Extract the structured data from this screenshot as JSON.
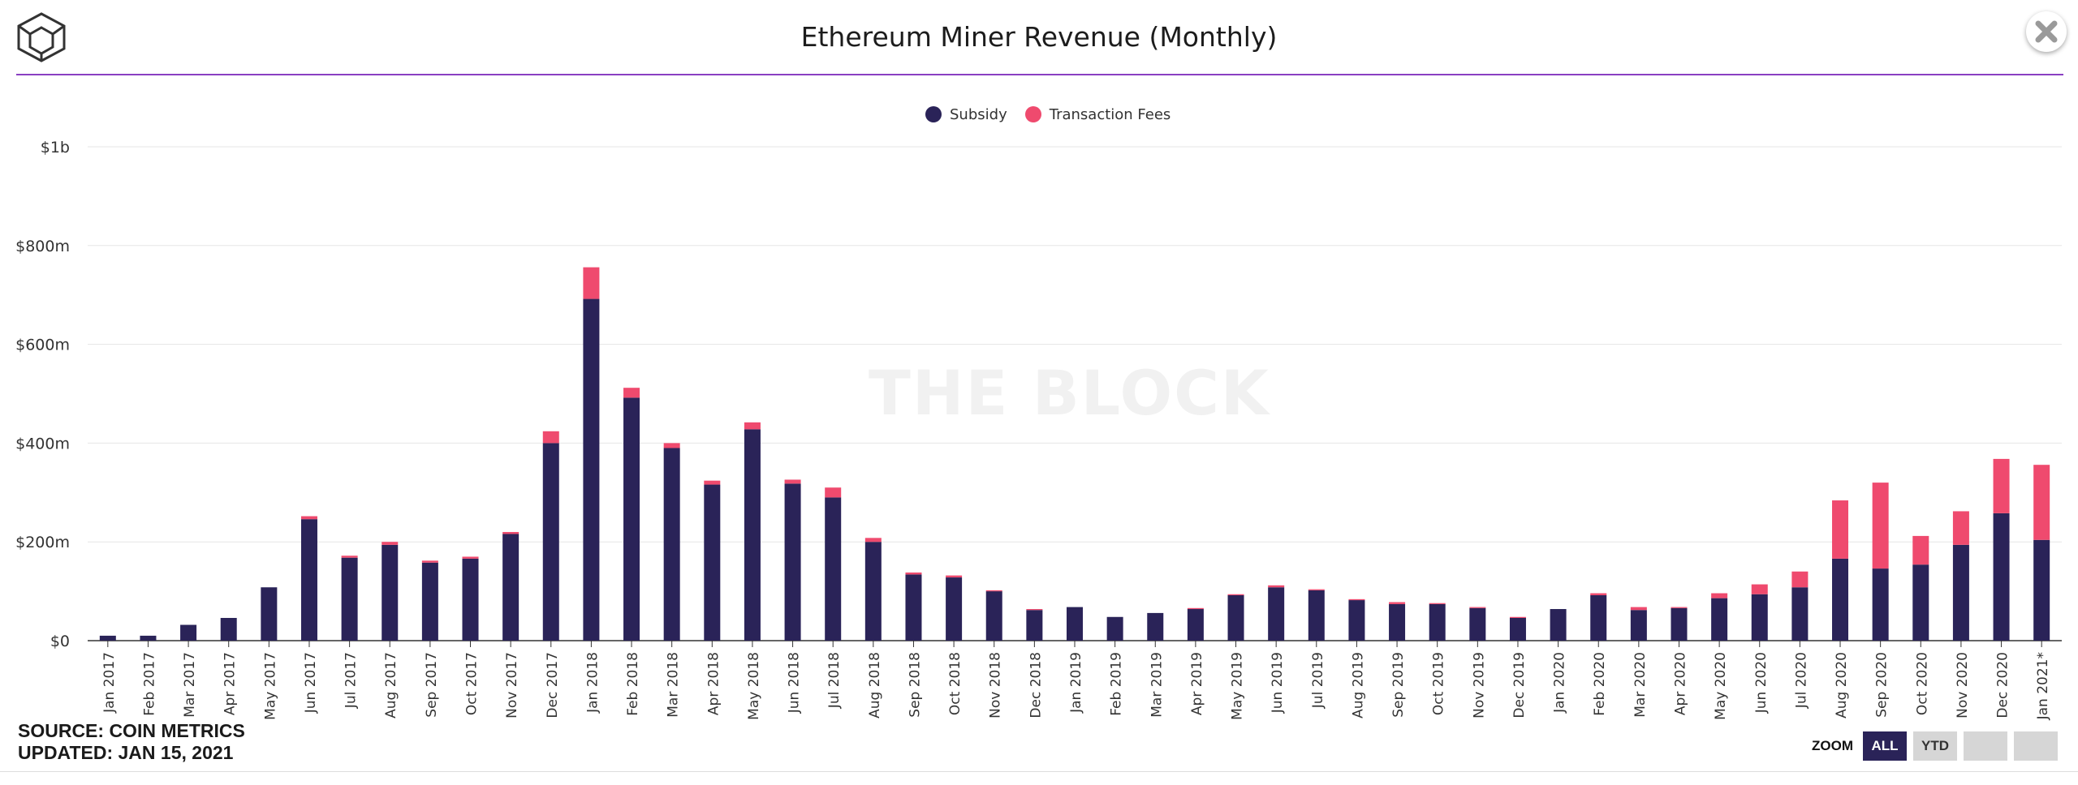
{
  "header": {
    "title": "Ethereum Miner Revenue (Monthly)",
    "logo_icon": "cube-logo-icon",
    "close_icon": "close-icon"
  },
  "watermark": "THE BLOCK",
  "footer": {
    "source": "SOURCE: COIN METRICS",
    "updated": "UPDATED: JAN 15, 2021"
  },
  "zoom": {
    "label": "ZOOM",
    "buttons": [
      {
        "label": "ALL",
        "active": true
      },
      {
        "label": "YTD",
        "active": false
      },
      {
        "label": "",
        "active": false
      },
      {
        "label": "",
        "active": false
      }
    ]
  },
  "chart_data": {
    "type": "bar",
    "stacked": true,
    "title": "Ethereum Miner Revenue (Monthly)",
    "xlabel": "",
    "ylabel": "",
    "ylim": [
      0,
      1000
    ],
    "yticks": [
      0,
      200,
      400,
      600,
      800,
      1000
    ],
    "ytick_labels": [
      "$0",
      "$200m",
      "$400m",
      "$600m",
      "$800m",
      "$1b"
    ],
    "grid": true,
    "legend_position": "top-center",
    "categories": [
      "Jan 2017",
      "Feb 2017",
      "Mar 2017",
      "Apr 2017",
      "May 2017",
      "Jun 2017",
      "Jul 2017",
      "Aug 2017",
      "Sep 2017",
      "Oct 2017",
      "Nov 2017",
      "Dec 2017",
      "Jan 2018",
      "Feb 2018",
      "Mar 2018",
      "Apr 2018",
      "May 2018",
      "Jun 2018",
      "Jul 2018",
      "Aug 2018",
      "Sep 2018",
      "Oct 2018",
      "Nov 2018",
      "Dec 2018",
      "Jan 2019",
      "Feb 2019",
      "Mar 2019",
      "Apr 2019",
      "May 2019",
      "Jun 2019",
      "Jul 2019",
      "Aug 2019",
      "Sep 2019",
      "Oct 2019",
      "Nov 2019",
      "Dec 2019",
      "Jan 2020",
      "Feb 2020",
      "Mar 2020",
      "Apr 2020",
      "May 2020",
      "Jun 2020",
      "Jul 2020",
      "Aug 2020",
      "Sep 2020",
      "Oct 2020",
      "Nov 2020",
      "Dec 2020",
      "Jan 2021*"
    ],
    "series": [
      {
        "name": "Subsidy",
        "color": "#2a2358",
        "values": [
          10,
          10,
          32,
          46,
          108,
          246,
          168,
          194,
          158,
          166,
          216,
          400,
          692,
          492,
          390,
          316,
          428,
          318,
          290,
          200,
          134,
          128,
          100,
          62,
          68,
          48,
          56,
          64,
          92,
          108,
          102,
          82,
          74,
          74,
          66,
          46,
          64,
          92,
          62,
          66,
          86,
          94,
          108,
          166,
          146,
          154,
          194,
          258,
          204
        ]
      },
      {
        "name": "Transaction Fees",
        "color": "#ef4a6e",
        "values": [
          0,
          0,
          0,
          0,
          0,
          6,
          4,
          6,
          4,
          4,
          4,
          24,
          64,
          20,
          10,
          8,
          14,
          8,
          20,
          8,
          4,
          4,
          2,
          2,
          0,
          0,
          0,
          2,
          2,
          4,
          2,
          2,
          4,
          2,
          2,
          2,
          0,
          4,
          6,
          2,
          10,
          20,
          32,
          118,
          174,
          58,
          68,
          110,
          152
        ]
      }
    ]
  }
}
